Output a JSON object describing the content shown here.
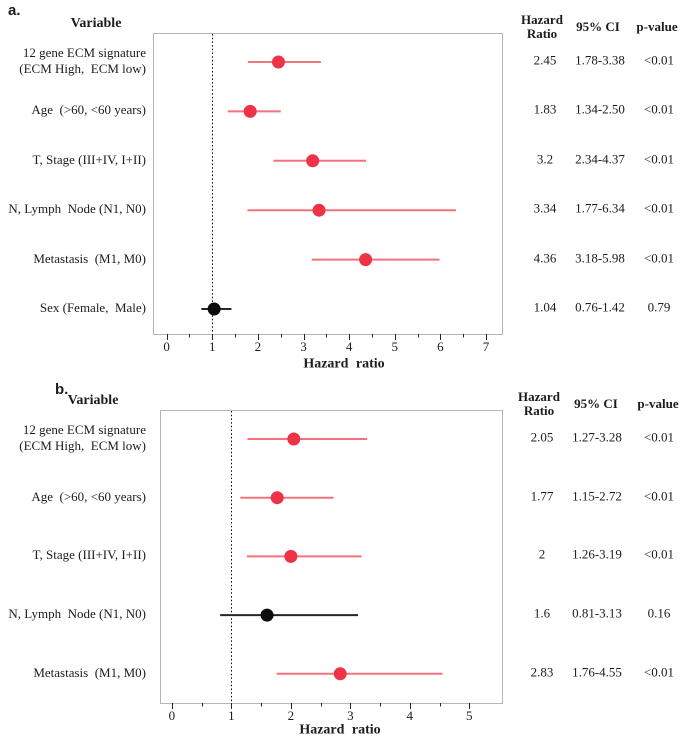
{
  "figure": {
    "table_headers": {
      "variable": "Variable",
      "hazard_ratio": "Hazard\nRatio",
      "ci": "95% CI",
      "p": "p-value"
    }
  },
  "colors": {
    "significant_dot": "#EE3346",
    "significant_line": "#F5717D",
    "nonsignificant_dot": "#0D0D0D",
    "nonsignificant_line": "#262626",
    "frame": "#B5B5B5",
    "axis": "#262626",
    "reference_line": "#000000",
    "text": "#1C1C1C"
  },
  "chart_data": [
    {
      "type": "scatter",
      "subtype": "forest-plot",
      "panel_label": "a.",
      "xlabel": "Hazard ratio",
      "xlim": [
        -0.3,
        7.35
      ],
      "xticks": [
        0,
        1,
        2,
        3,
        4,
        5,
        6,
        7
      ],
      "minor_ticks": [
        0.5,
        1.5,
        2.5,
        3.5,
        4.5,
        5.5,
        6.5
      ],
      "reference_line_x": 1,
      "grid": false,
      "rows": [
        {
          "label_lines": [
            "12 gene ECM signature",
            "(ECM High,  ECM low)"
          ],
          "hr": 2.45,
          "ci_low": 1.78,
          "ci_high": 3.38,
          "hr_text": "2.45",
          "ci_text": "1.78-3.38",
          "p_text": "<0.01",
          "significant": true
        },
        {
          "label_lines": [
            "Age  (>60, <60 years)"
          ],
          "hr": 1.83,
          "ci_low": 1.34,
          "ci_high": 2.5,
          "hr_text": "1.83",
          "ci_text": "1.34-2.50",
          "p_text": "<0.01",
          "significant": true
        },
        {
          "label_lines": [
            "T, Stage (III+IV, I+II)"
          ],
          "hr": 3.2,
          "ci_low": 2.34,
          "ci_high": 4.37,
          "hr_text": "3.2",
          "ci_text": "2.34-4.37",
          "p_text": "<0.01",
          "significant": true
        },
        {
          "label_lines": [
            "N, Lymph  Node (N1, N0)"
          ],
          "hr": 3.34,
          "ci_low": 1.77,
          "ci_high": 6.34,
          "hr_text": "3.34",
          "ci_text": "1.77-6.34",
          "p_text": "<0.01",
          "significant": true
        },
        {
          "label_lines": [
            "Metastasis  (M1, M0)"
          ],
          "hr": 4.36,
          "ci_low": 3.18,
          "ci_high": 5.98,
          "hr_text": "4.36",
          "ci_text": "3.18-5.98",
          "p_text": "<0.01",
          "significant": true
        },
        {
          "label_lines": [
            "Sex (Female,  Male)"
          ],
          "hr": 1.04,
          "ci_low": 0.76,
          "ci_high": 1.42,
          "hr_text": "1.04",
          "ci_text": "0.76-1.42",
          "p_text": "0.79",
          "significant": false
        }
      ]
    },
    {
      "type": "scatter",
      "subtype": "forest-plot",
      "panel_label": "b.",
      "xlabel": "Hazard ratio",
      "xlim": [
        -0.2,
        5.55
      ],
      "xticks": [
        0,
        1,
        2,
        3,
        4,
        5
      ],
      "minor_ticks": [
        0.5,
        1.5,
        2.5,
        3.5,
        4.5
      ],
      "reference_line_x": 1,
      "grid": false,
      "rows": [
        {
          "label_lines": [
            "12 gene ECM signature",
            "(ECM High,  ECM low)"
          ],
          "hr": 2.05,
          "ci_low": 1.27,
          "ci_high": 3.28,
          "hr_text": "2.05",
          "ci_text": "1.27-3.28",
          "p_text": "<0.01",
          "significant": true
        },
        {
          "label_lines": [
            "Age  (>60, <60 years)"
          ],
          "hr": 1.77,
          "ci_low": 1.15,
          "ci_high": 2.72,
          "hr_text": "1.77",
          "ci_text": "1.15-2.72",
          "p_text": "<0.01",
          "significant": true
        },
        {
          "label_lines": [
            "T, Stage (III+IV, I+II)"
          ],
          "hr": 2.0,
          "ci_low": 1.26,
          "ci_high": 3.19,
          "hr_text": "2",
          "ci_text": "1.26-3.19",
          "p_text": "<0.01",
          "significant": true
        },
        {
          "label_lines": [
            "N, Lymph  Node (N1, N0)"
          ],
          "hr": 1.6,
          "ci_low": 0.81,
          "ci_high": 3.13,
          "hr_text": "1.6",
          "ci_text": "0.81-3.13",
          "p_text": "0.16",
          "significant": false
        },
        {
          "label_lines": [
            "Metastasis  (M1, M0)"
          ],
          "hr": 2.83,
          "ci_low": 1.76,
          "ci_high": 4.55,
          "hr_text": "2.83",
          "ci_text": "1.76-4.55",
          "p_text": "<0.01",
          "significant": true
        }
      ]
    }
  ]
}
